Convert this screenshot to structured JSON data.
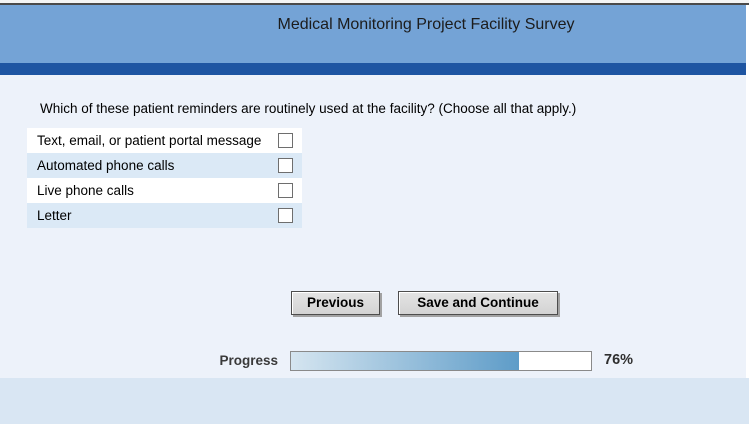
{
  "header": {
    "title": "Medical Monitoring Project Facility Survey"
  },
  "question": {
    "text": "Which of these patient reminders are routinely used at the facility? (Choose all that apply.)"
  },
  "options": [
    {
      "label": "Text, email, or patient portal message",
      "checked": false
    },
    {
      "label": "Automated phone calls",
      "checked": false
    },
    {
      "label": "Live phone calls",
      "checked": false
    },
    {
      "label": "Letter",
      "checked": false
    }
  ],
  "buttons": {
    "previous": "Previous",
    "save_and_continue": "Save and Continue"
  },
  "progress": {
    "label": "Progress",
    "percent": 76,
    "percent_text": "76%"
  },
  "colors": {
    "header_blue": "#74a3d6",
    "divider_blue": "#1e55a2",
    "content_bg": "#edf2fa",
    "footer_bg": "#d9e6f3",
    "row_alt_blue": "#dbe9f6",
    "progress_fill_start": "#d5e5f0",
    "progress_fill_end": "#5e9cc8"
  }
}
